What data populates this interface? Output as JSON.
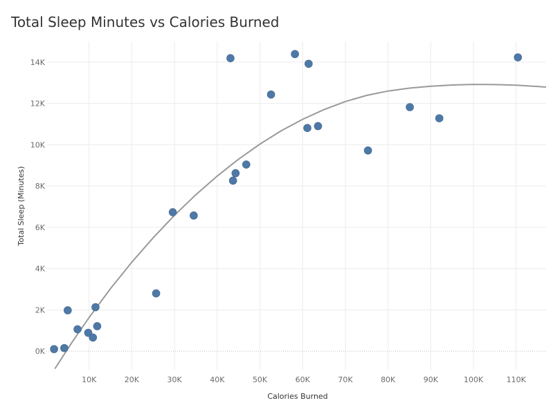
{
  "chart_data": {
    "type": "scatter",
    "title": "Total Sleep Minutes vs Calories Burned",
    "xlabel": "Calories Burned",
    "ylabel": "Total Sleep (Minutes)",
    "xlim": [
      0,
      117000
    ],
    "ylim": [
      -900,
      15000
    ],
    "x_ticks": [
      10000,
      20000,
      30000,
      40000,
      50000,
      60000,
      70000,
      80000,
      90000,
      100000,
      110000
    ],
    "x_tick_labels": [
      "10K",
      "20K",
      "30K",
      "40K",
      "50K",
      "60K",
      "70K",
      "80K",
      "90K",
      "100K",
      "110K"
    ],
    "y_ticks": [
      0,
      2000,
      4000,
      6000,
      8000,
      10000,
      12000,
      14000
    ],
    "y_tick_labels": [
      "0K",
      "2K",
      "4K",
      "6K",
      "8K",
      "10K",
      "12K",
      "14K"
    ],
    "grid": true,
    "point_color": "#4e79a7",
    "trend_color": "#999999",
    "points": [
      {
        "x": 1800,
        "y": 100
      },
      {
        "x": 4200,
        "y": 150
      },
      {
        "x": 5000,
        "y": 1980
      },
      {
        "x": 7300,
        "y": 1060
      },
      {
        "x": 9800,
        "y": 890
      },
      {
        "x": 10900,
        "y": 660
      },
      {
        "x": 11500,
        "y": 2130
      },
      {
        "x": 11900,
        "y": 1210
      },
      {
        "x": 25700,
        "y": 2800
      },
      {
        "x": 29600,
        "y": 6730
      },
      {
        "x": 34500,
        "y": 6570
      },
      {
        "x": 43100,
        "y": 14190
      },
      {
        "x": 43700,
        "y": 8260
      },
      {
        "x": 44300,
        "y": 8620
      },
      {
        "x": 46800,
        "y": 9040
      },
      {
        "x": 52600,
        "y": 12430
      },
      {
        "x": 58200,
        "y": 14390
      },
      {
        "x": 61100,
        "y": 10810
      },
      {
        "x": 61400,
        "y": 13920
      },
      {
        "x": 63600,
        "y": 10900
      },
      {
        "x": 75300,
        "y": 9720
      },
      {
        "x": 85100,
        "y": 11820
      },
      {
        "x": 92000,
        "y": 11280
      },
      {
        "x": 110400,
        "y": 14230
      }
    ],
    "trend_line": {
      "type": "polynomial",
      "x": [
        2000,
        6000,
        10000,
        15000,
        20000,
        25000,
        30000,
        35000,
        40000,
        45000,
        50000,
        55000,
        60000,
        65000,
        70000,
        75000,
        80000,
        85000,
        90000,
        95000,
        100000,
        105000,
        110000,
        115000,
        117000
      ],
      "y": [
        -850,
        430,
        1630,
        3030,
        4310,
        5490,
        6580,
        7580,
        8480,
        9300,
        10030,
        10680,
        11230,
        11700,
        12090,
        12390,
        12600,
        12740,
        12830,
        12890,
        12920,
        12910,
        12880,
        12820,
        12790
      ]
    }
  }
}
